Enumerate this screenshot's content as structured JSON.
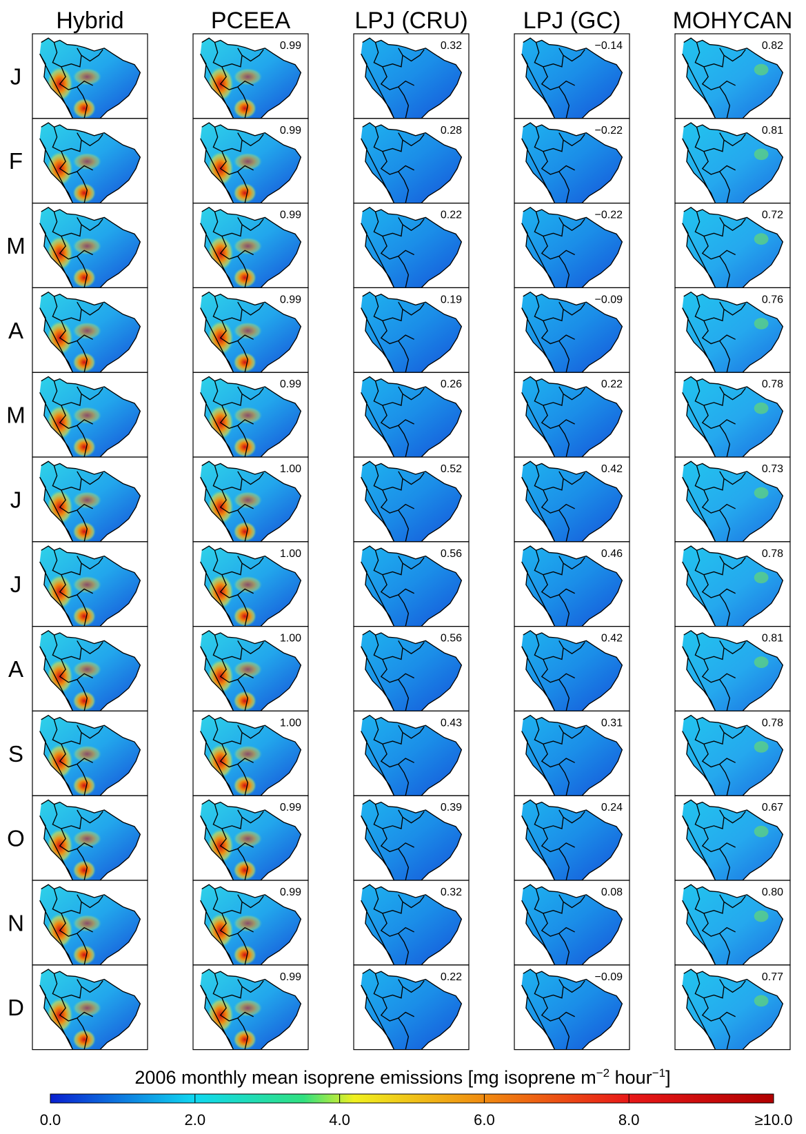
{
  "columns": [
    "Hybrid",
    "PCEEA",
    "LPJ (CRU)",
    "LPJ (GC)",
    "MOHYCAN"
  ],
  "rows": [
    "J",
    "F",
    "M",
    "A",
    "M",
    "J",
    "J",
    "A",
    "S",
    "O",
    "N",
    "D"
  ],
  "correlations": [
    [
      "0.99",
      "0.32",
      "−0.14",
      "0.82"
    ],
    [
      "0.99",
      "0.28",
      "−0.22",
      "0.81"
    ],
    [
      "0.99",
      "0.22",
      "−0.22",
      "0.72"
    ],
    [
      "0.99",
      "0.19",
      "−0.09",
      "0.76"
    ],
    [
      "0.99",
      "0.26",
      "0.22",
      "0.78"
    ],
    [
      "1.00",
      "0.52",
      "0.42",
      "0.73"
    ],
    [
      "1.00",
      "0.56",
      "0.46",
      "0.78"
    ],
    [
      "1.00",
      "0.56",
      "0.42",
      "0.81"
    ],
    [
      "1.00",
      "0.43",
      "0.31",
      "0.78"
    ],
    [
      "0.99",
      "0.39",
      "0.24",
      "0.67"
    ],
    [
      "0.99",
      "0.32",
      "0.08",
      "0.80"
    ],
    [
      "0.99",
      "0.22",
      "−0.09",
      "0.77"
    ]
  ],
  "colorbar": {
    "title_parts": [
      "2006 monthly mean isoprene emissions [mg isoprene m",
      "−2",
      " hour",
      "−1",
      "]"
    ],
    "ticks": [
      "0.0",
      "2.0",
      "4.0",
      "6.0",
      "8.0",
      "≥10.0"
    ]
  }
}
